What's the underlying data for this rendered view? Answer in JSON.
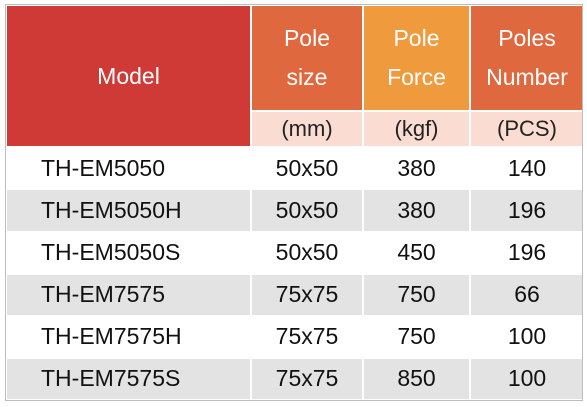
{
  "table": {
    "headers": {
      "model": "Model",
      "pole_size": [
        "Pole",
        "size"
      ],
      "pole_force": [
        "Pole",
        "Force"
      ],
      "poles_number": [
        "Poles",
        "Number"
      ]
    },
    "units": {
      "pole_size": "(mm)",
      "pole_force": "(kgf)",
      "poles_number": "(PCS)"
    },
    "rows": [
      {
        "model": "TH-EM5050",
        "pole_size": "50x50",
        "pole_force": "380",
        "poles_number": "140"
      },
      {
        "model": "TH-EM5050H",
        "pole_size": "50x50",
        "pole_force": "380",
        "poles_number": "196"
      },
      {
        "model": "TH-EM5050S",
        "pole_size": "50x50",
        "pole_force": "450",
        "poles_number": "196"
      },
      {
        "model": "TH-EM7575",
        "pole_size": "75x75",
        "pole_force": "750",
        "poles_number": "66"
      },
      {
        "model": "TH-EM7575H",
        "pole_size": "75x75",
        "pole_force": "750",
        "poles_number": "100"
      },
      {
        "model": "TH-EM7575S",
        "pole_size": "75x75",
        "pole_force": "850",
        "poles_number": "100"
      }
    ],
    "colors": {
      "model_header": "#cf3a36",
      "size_header": "#e0683e",
      "force_header": "#ef9a3c",
      "number_header": "#e0683e",
      "unit_row": "#fbdcd2",
      "stripe_row": "#e3e3e3"
    }
  }
}
